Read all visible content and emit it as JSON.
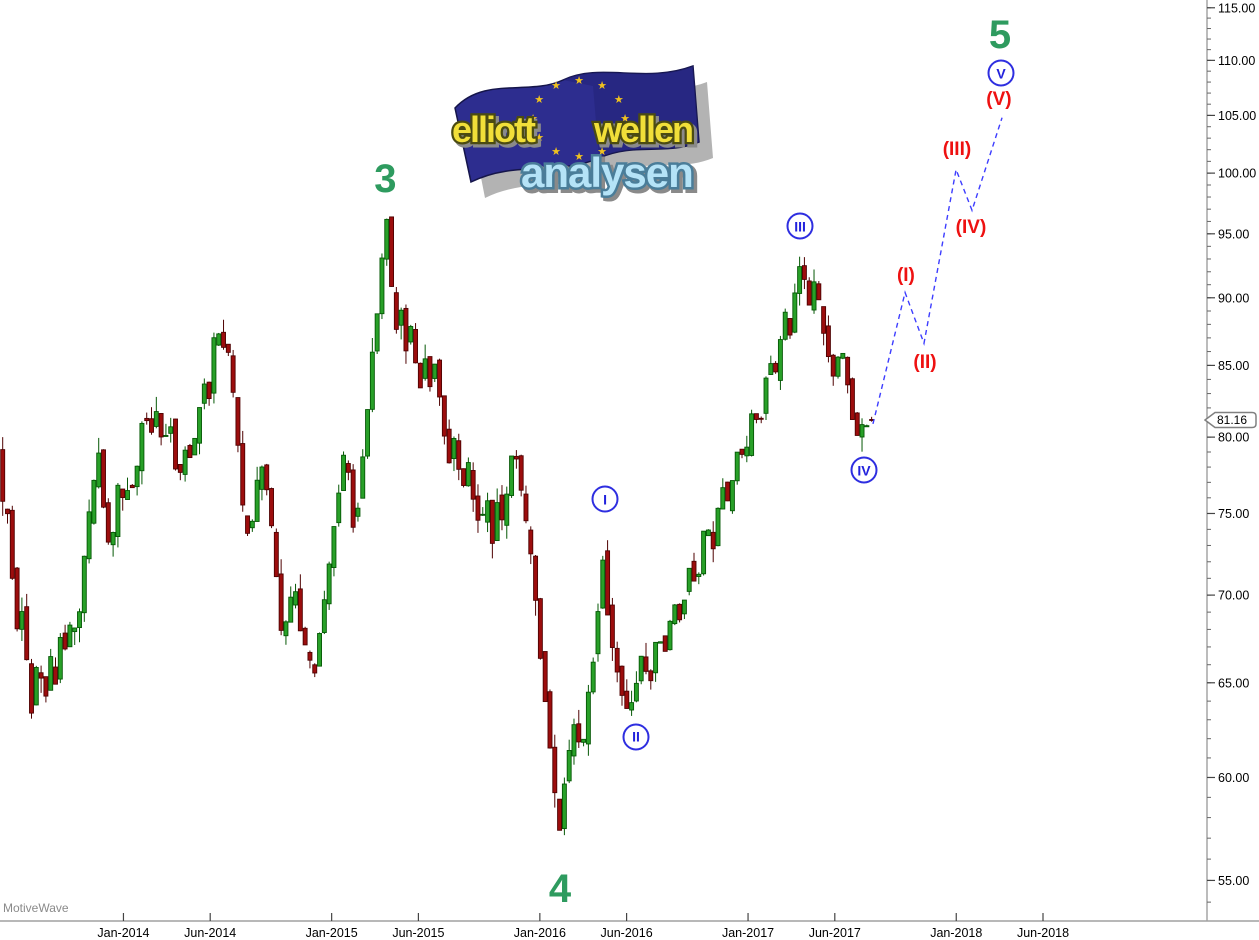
{
  "window": {
    "watermark": "MotiveWave"
  },
  "logo": {
    "word1": "elliott",
    "word2": "wellen",
    "word3": "analysen",
    "flag_color": "#2d2d8f",
    "flag_fold_color": "#232378",
    "star_color": "#f0c21f",
    "word12_fill": "#f1df39",
    "word12_outline": "#4b4b12",
    "word3_fill": "#b5e3f7",
    "word3_outline": "#4a7d99",
    "star_count": 12
  },
  "price_axis": {
    "last_price": 81.16,
    "last_price_label": "81.16",
    "major_ticks": [
      {
        "value": 115,
        "label": "115.00"
      },
      {
        "value": 110,
        "label": "110.00"
      },
      {
        "value": 105,
        "label": "105.00"
      },
      {
        "value": 100,
        "label": "100.00"
      },
      {
        "value": 95,
        "label": "95.00"
      },
      {
        "value": 90,
        "label": "90.00"
      },
      {
        "value": 85,
        "label": "85.00"
      },
      {
        "value": 80,
        "label": "80.00"
      },
      {
        "value": 75,
        "label": "75.00"
      },
      {
        "value": 70,
        "label": "70.00"
      },
      {
        "value": 65,
        "label": "65.00"
      },
      {
        "value": 60,
        "label": "60.00"
      },
      {
        "value": 55,
        "label": "55.00"
      }
    ],
    "minor_tick_step": 1
  },
  "time_axis": {
    "labels": [
      {
        "text": "Jan-2014",
        "m": 7
      },
      {
        "text": "Jun-2014",
        "m": 12
      },
      {
        "text": "Jan-2015",
        "m": 19
      },
      {
        "text": "Jun-2015",
        "m": 24
      },
      {
        "text": "Jan-2016",
        "m": 31
      },
      {
        "text": "Jun-2016",
        "m": 36
      },
      {
        "text": "Jan-2017",
        "m": 43
      },
      {
        "text": "Jun-2017",
        "m": 48
      },
      {
        "text": "Jan-2018",
        "m": 55
      },
      {
        "text": "Jun-2018",
        "m": 60
      }
    ],
    "epoch": "2013-06"
  },
  "chart_data": {
    "type": "candlestick",
    "title": "",
    "y_axis": {
      "scale": "log",
      "visible_range": [
        54,
        116
      ],
      "tick_interval": 5,
      "grid": false
    },
    "x_axis": {
      "start": "2013-06",
      "end": "2018-08",
      "unit": "months_since_2013-06"
    },
    "last_price": 81.16,
    "price_path_pivots": [
      [
        0.0,
        79.5
      ],
      [
        0.23,
        74.5
      ],
      [
        0.52,
        75.5
      ],
      [
        0.92,
        67.5
      ],
      [
        1.27,
        69.5
      ],
      [
        1.79,
        63.2
      ],
      [
        2.25,
        66.5
      ],
      [
        2.59,
        63.8
      ],
      [
        3.0,
        66.5
      ],
      [
        3.23,
        65.0
      ],
      [
        3.57,
        68.5
      ],
      [
        3.92,
        66.0
      ],
      [
        4.15,
        69.5
      ],
      [
        4.44,
        67.0
      ],
      [
        4.96,
        73.0
      ],
      [
        5.36,
        76.5
      ],
      [
        5.71,
        78.8
      ],
      [
        6.17,
        73.5
      ],
      [
        6.4,
        72.0
      ],
      [
        6.8,
        76.5
      ],
      [
        7.2,
        75.5
      ],
      [
        7.55,
        77.5
      ],
      [
        7.78,
        76.0
      ],
      [
        8.3,
        82.5
      ],
      [
        8.65,
        80.0
      ],
      [
        8.99,
        82.0
      ],
      [
        9.39,
        79.5
      ],
      [
        9.8,
        81.5
      ],
      [
        10.26,
        76.8
      ],
      [
        10.72,
        79.5
      ],
      [
        11.07,
        78.0
      ],
      [
        11.7,
        84.0
      ],
      [
        12.05,
        82.5
      ],
      [
        12.45,
        88.0
      ],
      [
        13.14,
        86.0
      ],
      [
        13.6,
        81.5
      ],
      [
        14.06,
        74.5
      ],
      [
        14.41,
        73.5
      ],
      [
        14.76,
        76.5
      ],
      [
        15.16,
        78.3
      ],
      [
        15.56,
        75.0
      ],
      [
        15.91,
        71.5
      ],
      [
        16.31,
        67.0
      ],
      [
        16.66,
        69.0
      ],
      [
        17.0,
        70.5
      ],
      [
        17.41,
        67.5
      ],
      [
        17.75,
        66.5
      ],
      [
        18.1,
        65.3
      ],
      [
        18.44,
        67.5
      ],
      [
        18.91,
        71.0
      ],
      [
        19.48,
        76.0
      ],
      [
        19.88,
        79.0
      ],
      [
        20.17,
        77.0
      ],
      [
        20.46,
        73.5
      ],
      [
        20.87,
        78.0
      ],
      [
        21.21,
        82.0
      ],
      [
        21.5,
        86.0
      ],
      [
        21.79,
        89.5
      ],
      [
        22.07,
        93.5
      ],
      [
        22.3,
        96.3
      ],
      [
        22.59,
        90.5
      ],
      [
        22.88,
        87.5
      ],
      [
        23.17,
        89.0
      ],
      [
        23.46,
        86.0
      ],
      [
        23.75,
        88.5
      ],
      [
        24.15,
        83.0
      ],
      [
        24.5,
        85.5
      ],
      [
        24.84,
        83.5
      ],
      [
        25.13,
        85.8
      ],
      [
        25.59,
        80.5
      ],
      [
        25.94,
        78.0
      ],
      [
        26.28,
        80.5
      ],
      [
        26.63,
        75.8
      ],
      [
        26.97,
        78.5
      ],
      [
        27.32,
        76.0
      ],
      [
        27.72,
        73.8
      ],
      [
        28.07,
        76.5
      ],
      [
        28.36,
        73.0
      ],
      [
        28.7,
        76.0
      ],
      [
        29.05,
        74.0
      ],
      [
        29.39,
        78.0
      ],
      [
        29.68,
        79.6
      ],
      [
        30.03,
        76.5
      ],
      [
        30.37,
        74.0
      ],
      [
        30.78,
        71.5
      ],
      [
        31.12,
        67.0
      ],
      [
        31.53,
        63.5
      ],
      [
        31.87,
        60.5
      ],
      [
        32.22,
        56.8
      ],
      [
        32.51,
        59.5
      ],
      [
        32.86,
        61.5
      ],
      [
        33.2,
        63.3
      ],
      [
        33.55,
        61.0
      ],
      [
        33.95,
        64.5
      ],
      [
        34.35,
        67.5
      ],
      [
        34.76,
        72.5
      ],
      [
        35.1,
        68.5
      ],
      [
        35.45,
        66.5
      ],
      [
        35.85,
        64.5
      ],
      [
        36.25,
        63.2
      ],
      [
        36.66,
        64.8
      ],
      [
        37.06,
        66.5
      ],
      [
        37.46,
        64.9
      ],
      [
        37.92,
        68.0
      ],
      [
        38.33,
        66.5
      ],
      [
        38.85,
        70.0
      ],
      [
        39.25,
        68.5
      ],
      [
        39.77,
        72.0
      ],
      [
        40.17,
        70.5
      ],
      [
        40.69,
        74.5
      ],
      [
        41.09,
        72.8
      ],
      [
        41.61,
        77.0
      ],
      [
        42.02,
        75.2
      ],
      [
        42.54,
        79.5
      ],
      [
        42.94,
        78.0
      ],
      [
        43.46,
        82.5
      ],
      [
        43.8,
        80.5
      ],
      [
        44.32,
        86.0
      ],
      [
        44.73,
        84.3
      ],
      [
        45.19,
        89.0
      ],
      [
        45.59,
        87.5
      ],
      [
        45.99,
        91.5
      ],
      [
        46.22,
        93.4
      ],
      [
        46.63,
        89.0
      ],
      [
        46.97,
        91.0
      ],
      [
        47.38,
        88.5
      ],
      [
        47.72,
        86.0
      ],
      [
        48.07,
        84.0
      ],
      [
        48.47,
        86.8
      ],
      [
        48.82,
        84.5
      ],
      [
        49.22,
        81.0
      ],
      [
        49.57,
        79.8
      ],
      [
        49.86,
        81.8
      ],
      [
        50.09,
        80.2
      ],
      [
        50.26,
        81.16
      ]
    ],
    "projection": {
      "style": "dashed",
      "color": "#3d3dff",
      "points": [
        [
          50.2,
          80.9
        ],
        [
          52.05,
          90.4
        ],
        [
          53.14,
          86.6
        ],
        [
          54.99,
          100.3
        ],
        [
          55.91,
          96.9
        ],
        [
          57.64,
          104.8
        ]
      ]
    },
    "elliott_wave_annotations": {
      "wave_numbers": [
        {
          "text": "3",
          "m": 22.1,
          "price": 99.5,
          "color": "#2e9b5f"
        },
        {
          "text": "4",
          "m": 32.16,
          "price": 54.6,
          "color": "#2e9b5f"
        },
        {
          "text": "5",
          "m": 57.52,
          "price": 112.4,
          "color": "#2e9b5f"
        }
      ],
      "circled_numerals": [
        {
          "text": "I",
          "m": 34.76,
          "price": 75.9
        },
        {
          "text": "II",
          "m": 36.54,
          "price": 62.1
        },
        {
          "text": "III",
          "m": 46.0,
          "price": 95.6
        },
        {
          "text": "IV",
          "m": 49.68,
          "price": 77.8
        },
        {
          "text": "V",
          "m": 57.58,
          "price": 108.8
        }
      ],
      "parenthesized_numerals": [
        {
          "text": "(I)",
          "m": 52.1,
          "price": 91.7
        },
        {
          "text": "(II)",
          "m": 53.2,
          "price": 85.2
        },
        {
          "text": "(III)",
          "m": 55.04,
          "price": 102.0
        },
        {
          "text": "(IV)",
          "m": 55.85,
          "price": 95.5
        },
        {
          "text": "(V)",
          "m": 57.46,
          "price": 106.4
        }
      ]
    },
    "colors": {
      "candle_up_fill": "#28a028",
      "candle_up_border": "#055805",
      "candle_down_fill": "#9c0d0d",
      "candle_down_border": "#4f0202",
      "axis_line": "#a0a0a0",
      "tick": "#444444",
      "label": "#000000",
      "circled_blue": "#2222dd",
      "paren_red": "#ee1111",
      "wave_green": "#2e9b5f"
    }
  }
}
